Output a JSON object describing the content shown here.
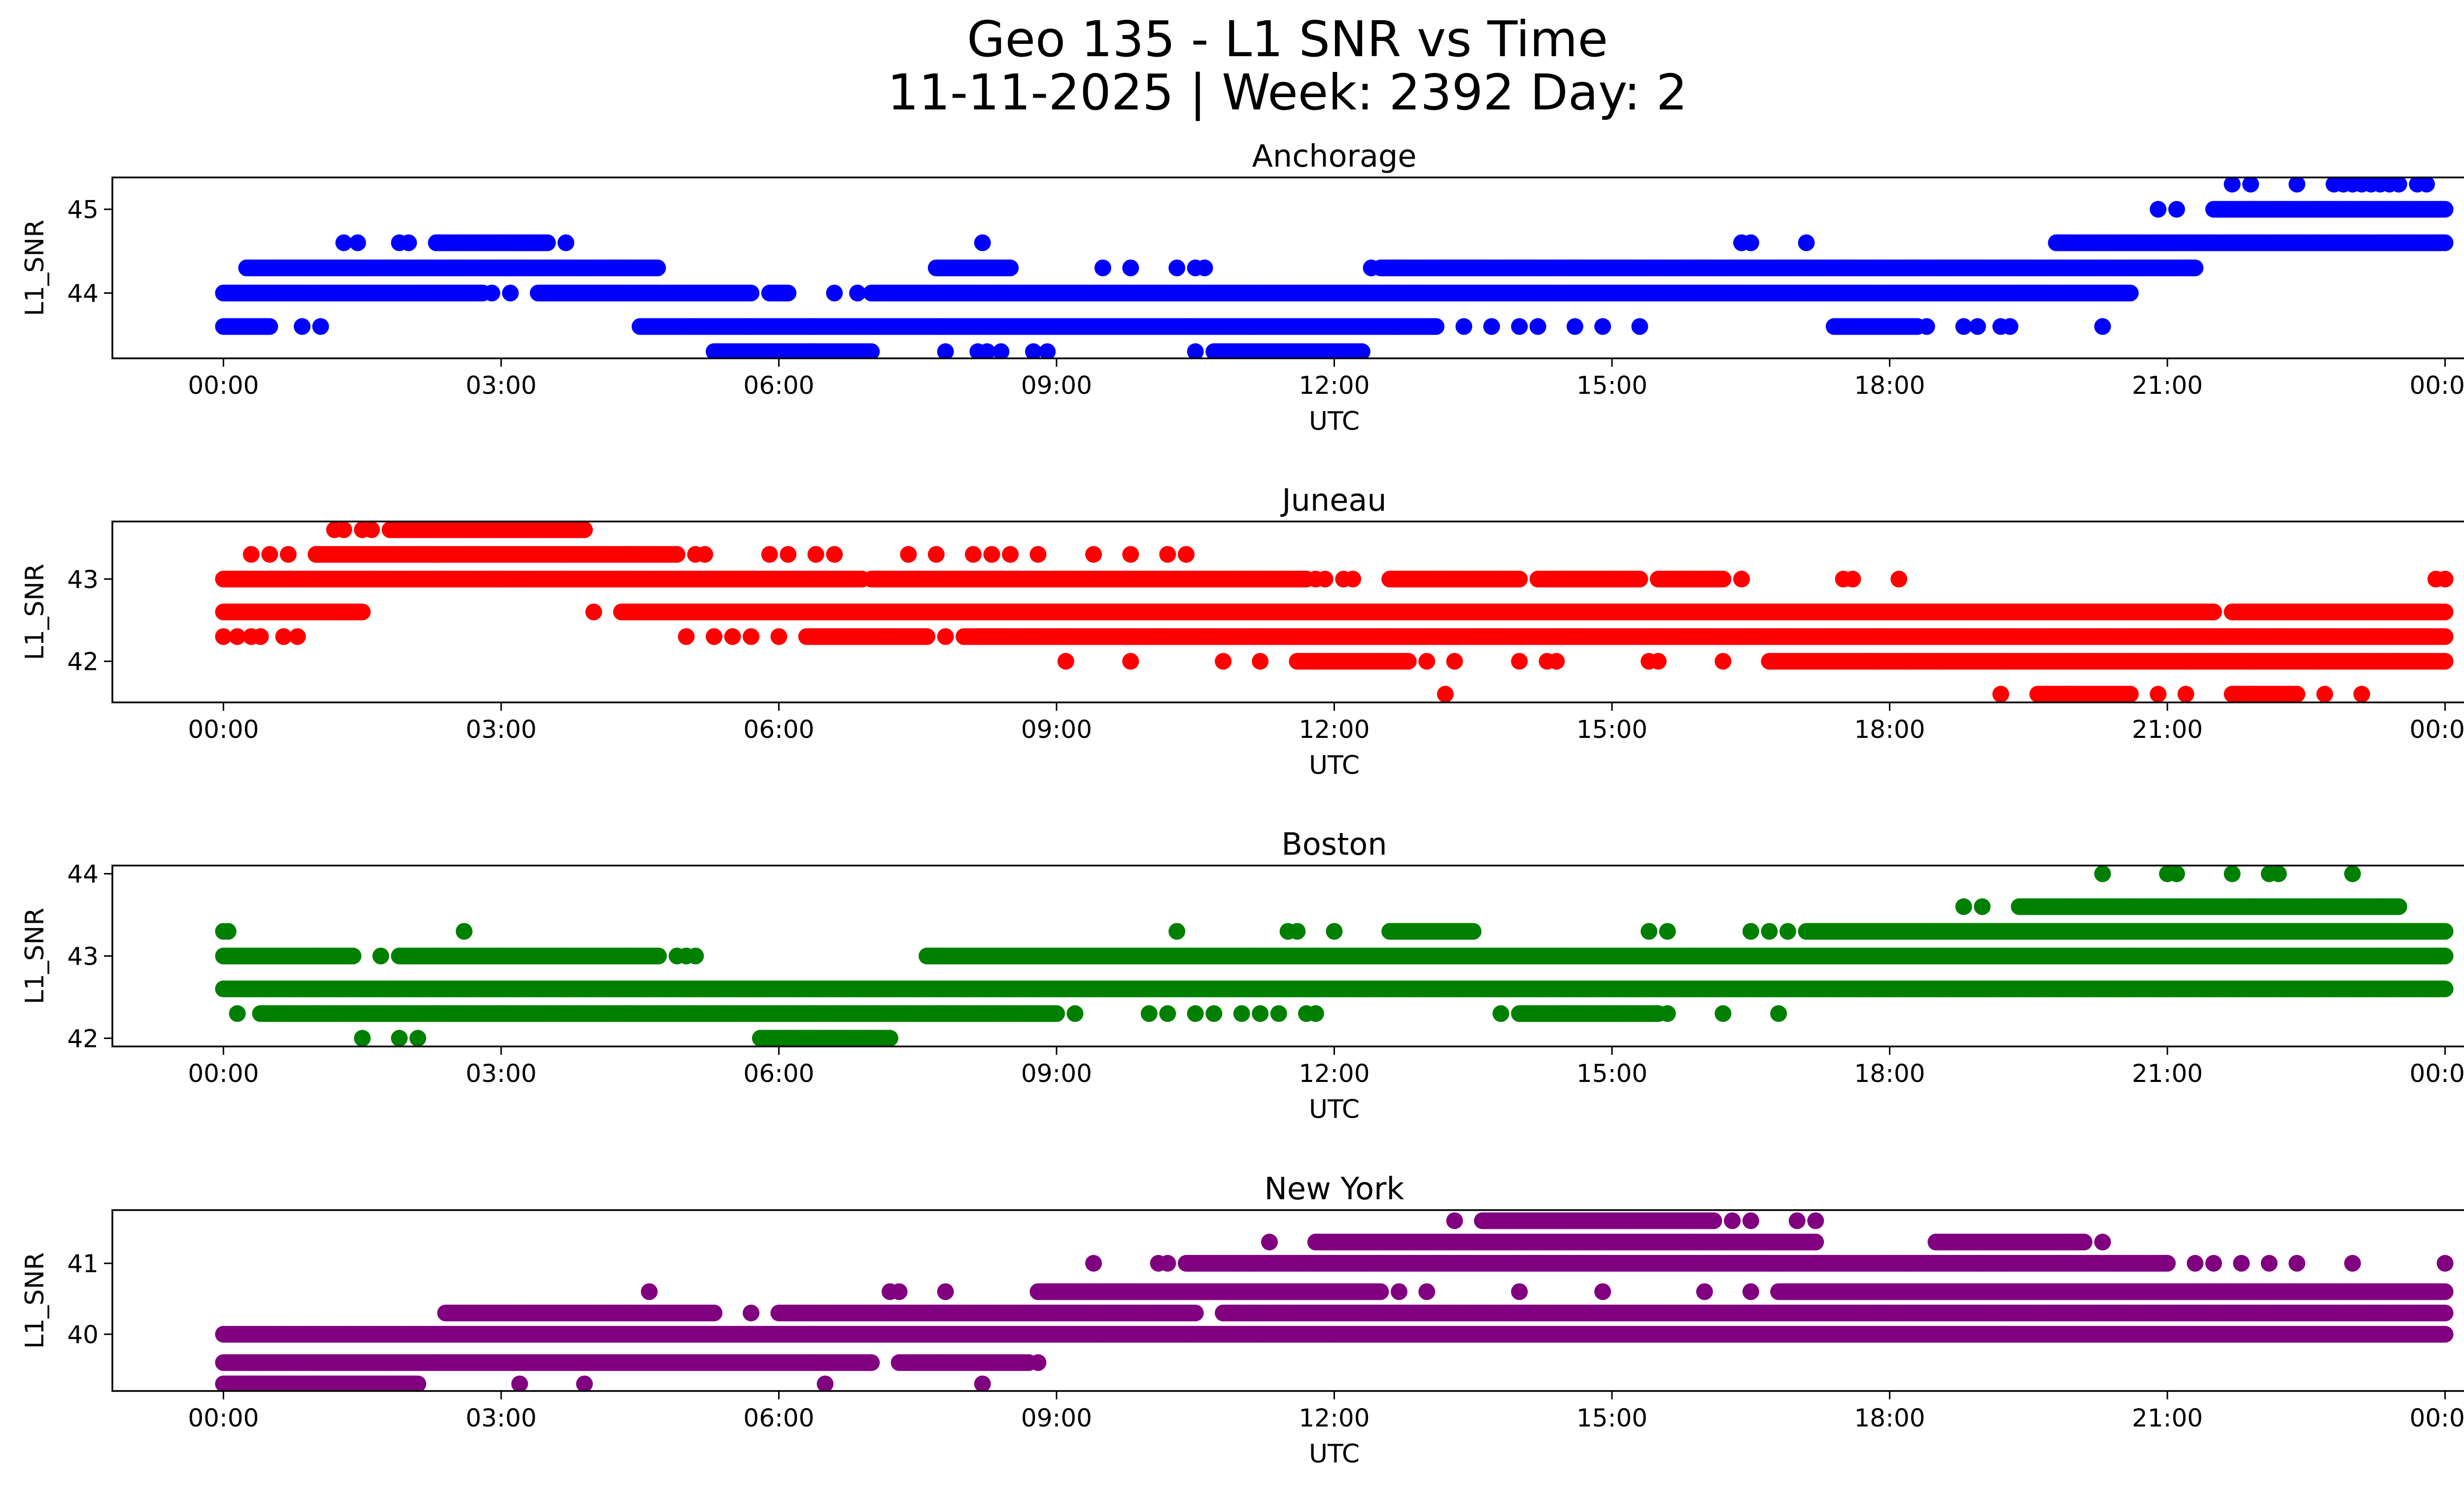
{
  "chart_data": {
    "type": "scatter",
    "title": "Geo 135 - L1 SNR vs Time",
    "subtitle": "11-11-2025 | Week: 2392 Day: 2",
    "panels": [
      {
        "title": "Anchorage",
        "color": "#0000ff",
        "xlabel": "UTC",
        "ylabel": "L1_SNR",
        "ylim": [
          43.22,
          45.38
        ],
        "yticks": [
          44,
          45
        ],
        "xtick_labels": [
          "00:00",
          "03:00",
          "06:00",
          "09:00",
          "12:00",
          "15:00",
          "18:00",
          "21:00",
          "00:00"
        ],
        "xlim_hours": [
          -1.2,
          25.2
        ],
        "segments": [
          {
            "y": 44.0,
            "runs": [
              [
                0,
                2.8
              ],
              [
                3.4,
                5.7
              ],
              [
                5.9,
                6.1
              ],
              [
                7.0,
                12.7
              ],
              [
                12.7,
                20.6
              ]
            ],
            "points": [
              2.9,
              3.1,
              6.6,
              6.85,
              8.9,
              11.2,
              11.5
            ]
          },
          {
            "y": 44.3,
            "runs": [
              [
                0.25,
                4.7
              ],
              [
                7.7,
                8.5
              ],
              [
                12.5,
                21.2
              ],
              [
                21.2,
                21.3
              ]
            ],
            "points": [
              9.5,
              9.8,
              10.3,
              10.5,
              10.6,
              12.4
            ]
          },
          {
            "y": 43.6,
            "runs": [
              [
                0,
                0.5
              ],
              [
                4.5,
                12.7
              ],
              [
                12.7,
                13.1
              ],
              [
                17.4,
                18.3
              ]
            ],
            "points": [
              0.85,
              1.05,
              13.4,
              13.7,
              14.0,
              14.2,
              14.6,
              14.9,
              15.3,
              18.4,
              18.8,
              18.95,
              19.2,
              19.3,
              20.3
            ]
          },
          {
            "y": 43.3,
            "runs": [
              [
                5.3,
                7.0
              ],
              [
                10.7,
                12.3
              ]
            ],
            "points": [
              7.8,
              8.15,
              8.25,
              8.4,
              8.75,
              8.9,
              10.5
            ]
          },
          {
            "y": 44.6,
            "runs": [
              [
                2.3,
                3.5
              ],
              [
                19.8,
                21.5
              ],
              [
                21.5,
                24.0
              ]
            ],
            "points": [
              1.3,
              1.45,
              1.9,
              2.0,
              2.3,
              3.7,
              8.2,
              16.4,
              16.5,
              17.1,
              22.2,
              22.4,
              23.4,
              23.6
            ]
          },
          {
            "y": 45.0,
            "runs": [
              [
                21.5,
                24.0
              ]
            ],
            "points": [
              20.9,
              21.1
            ]
          },
          {
            "y": 45.3,
            "points": [
              21.7,
              21.9,
              22.4,
              22.8,
              22.9,
              23.0,
              23.1,
              23.2,
              23.3,
              23.4,
              23.5,
              23.7,
              23.8
            ]
          }
        ]
      },
      {
        "title": "Juneau",
        "color": "#ff0000",
        "xlabel": "UTC",
        "ylabel": "L1_SNR",
        "ylim": [
          41.5,
          43.7
        ],
        "yticks": [
          42,
          43
        ],
        "xtick_labels": [
          "00:00",
          "03:00",
          "06:00",
          "09:00",
          "12:00",
          "15:00",
          "18:00",
          "21:00",
          "00:00"
        ],
        "xlim_hours": [
          -1.2,
          25.2
        ],
        "segments": [
          {
            "y": 43.0,
            "runs": [
              [
                0,
                3.0
              ],
              [
                3.0,
                6.9
              ],
              [
                7.0,
                11.7
              ],
              [
                12.6,
                14.0
              ],
              [
                14.2,
                15.3
              ],
              [
                15.5,
                16.2
              ]
            ],
            "points": [
              11.8,
              11.9,
              12.1,
              12.2,
              16.4,
              17.5,
              17.6,
              18.1,
              23.9,
              24.0
            ]
          },
          {
            "y": 42.6,
            "runs": [
              [
                0,
                1.5
              ],
              [
                4.3,
                21.5
              ],
              [
                21.7,
                24.0
              ]
            ],
            "points": [
              4.0
            ]
          },
          {
            "y": 42.3,
            "runs": [
              [
                6.3,
                7.6
              ],
              [
                8.0,
                24.0
              ]
            ],
            "points": [
              0,
              0.15,
              0.3,
              0.4,
              0.65,
              0.8,
              5.0,
              5.3,
              5.5,
              5.7,
              6.0,
              7.8
            ]
          },
          {
            "y": 43.3,
            "runs": [
              [
                1.0,
                4.9
              ]
            ],
            "points": [
              0.3,
              0.5,
              0.7,
              5.1,
              5.2,
              5.9,
              6.1,
              6.4,
              6.6,
              7.4,
              7.7,
              8.1,
              8.3,
              8.5,
              8.8,
              9.4,
              9.8,
              10.2,
              10.4
            ]
          },
          {
            "y": 43.6,
            "runs": [
              [
                1.8,
                3.9
              ]
            ],
            "points": [
              1.2,
              1.3,
              1.5,
              1.6
            ]
          },
          {
            "y": 42.0,
            "runs": [
              [
                11.6,
                12.8
              ],
              [
                16.7,
                18.2
              ],
              [
                18.2,
                24.0
              ]
            ],
            "points": [
              9.1,
              9.8,
              10.8,
              11.2,
              13.0,
              13.3,
              14.0,
              14.3,
              14.4,
              15.4,
              15.5,
              16.2
            ]
          },
          {
            "y": 41.6,
            "runs": [
              [
                19.6,
                20.6
              ],
              [
                21.7,
                22.4
              ]
            ],
            "points": [
              13.2,
              19.2,
              20.9,
              21.2,
              22.7,
              23.1
            ]
          }
        ]
      },
      {
        "title": "Boston",
        "color": "#008000",
        "xlabel": "UTC",
        "ylabel": "L1_SNR",
        "ylim": [
          41.9,
          44.1
        ],
        "yticks": [
          42,
          43,
          44
        ],
        "xtick_labels": [
          "00:00",
          "03:00",
          "06:00",
          "09:00",
          "12:00",
          "15:00",
          "18:00",
          "21:00",
          "00:00"
        ],
        "xlim_hours": [
          -1.2,
          25.2
        ],
        "segments": [
          {
            "y": 43.0,
            "runs": [
              [
                0,
                1.4
              ],
              [
                1.9,
                4.7
              ],
              [
                7.6,
                24.0
              ]
            ],
            "points": [
              1.7,
              4.9,
              5.0,
              5.1
            ]
          },
          {
            "y": 42.6,
            "runs": [
              [
                0,
                18.3
              ],
              [
                18.3,
                24.0
              ]
            ],
            "points": [
              18.9,
              20.3,
              22.1,
              23.6
            ]
          },
          {
            "y": 42.3,
            "runs": [
              [
                0.4,
                9.0
              ],
              [
                14.0,
                15.5
              ]
            ],
            "points": [
              0.15,
              9.2,
              10.0,
              10.2,
              10.5,
              10.7,
              11.0,
              11.2,
              11.4,
              11.7,
              11.8,
              13.8,
              15.6,
              16.2,
              16.8
            ]
          },
          {
            "y": 42.0,
            "runs": [
              [
                5.8,
                7.2
              ]
            ],
            "points": [
              1.5,
              1.9,
              2.1
            ]
          },
          {
            "y": 43.3,
            "runs": [
              [
                12.6,
                13.5
              ],
              [
                17.1,
                24.0
              ]
            ],
            "points": [
              0,
              0.05,
              2.6,
              10.3,
              11.5,
              11.6,
              12.0,
              15.4,
              15.6,
              16.5,
              16.7,
              16.9
            ]
          },
          {
            "y": 43.6,
            "runs": [
              [
                19.4,
                23.5
              ]
            ],
            "points": [
              18.8,
              19.0
            ]
          },
          {
            "y": 44.0,
            "points": [
              20.3,
              21.0,
              21.1,
              21.7,
              22.1,
              22.2,
              23.0
            ]
          }
        ]
      },
      {
        "title": "New York",
        "color": "#800080",
        "xlabel": "UTC",
        "ylabel": "L1_SNR",
        "ylim": [
          39.2,
          41.75
        ],
        "yticks": [
          40,
          41
        ],
        "xtick_labels": [
          "00:00",
          "03:00",
          "06:00",
          "09:00",
          "12:00",
          "15:00",
          "18:00",
          "21:00",
          "00:00"
        ],
        "xlim_hours": [
          -1.2,
          25.2
        ],
        "segments": [
          {
            "y": 40.0,
            "runs": [
              [
                0,
                9.5
              ],
              [
                9.5,
                11.2
              ],
              [
                11.2,
                12.0
              ],
              [
                12.0,
                24.0
              ]
            ],
            "points": []
          },
          {
            "y": 39.6,
            "runs": [
              [
                0,
                5.2
              ],
              [
                5.2,
                7.0
              ],
              [
                7.3,
                8.7
              ]
            ],
            "points": [
              8.8
            ]
          },
          {
            "y": 39.3,
            "runs": [
              [
                0,
                2.1
              ]
            ],
            "points": [
              3.2,
              3.9,
              6.5,
              8.2
            ]
          },
          {
            "y": 40.3,
            "runs": [
              [
                2.4,
                5.3
              ],
              [
                6.0,
                10.5
              ],
              [
                10.8,
                24.0
              ]
            ],
            "points": [
              5.7,
              12.2,
              20.0,
              20.3,
              20.5,
              21.1
            ]
          },
          {
            "y": 40.6,
            "runs": [
              [
                8.8,
                12.5
              ],
              [
                16.8,
                24.0
              ]
            ],
            "points": [
              4.6,
              7.2,
              7.3,
              7.8,
              12.7,
              13.0,
              14.0,
              14.9,
              16.0,
              16.5
            ]
          },
          {
            "y": 41.0,
            "runs": [
              [
                10.4,
                21.0
              ]
            ],
            "points": [
              9.4,
              10.1,
              10.2,
              21.3,
              21.5,
              21.8,
              22.1,
              22.4,
              23.0,
              24.0
            ]
          },
          {
            "y": 41.3,
            "runs": [
              [
                11.8,
                17.2
              ],
              [
                18.5,
                20.1
              ]
            ],
            "points": [
              11.3,
              20.3
            ]
          },
          {
            "y": 41.6,
            "runs": [
              [
                13.6,
                16.1
              ]
            ],
            "points": [
              13.3,
              16.3,
              16.5,
              17.0,
              17.2
            ]
          }
        ]
      }
    ]
  }
}
